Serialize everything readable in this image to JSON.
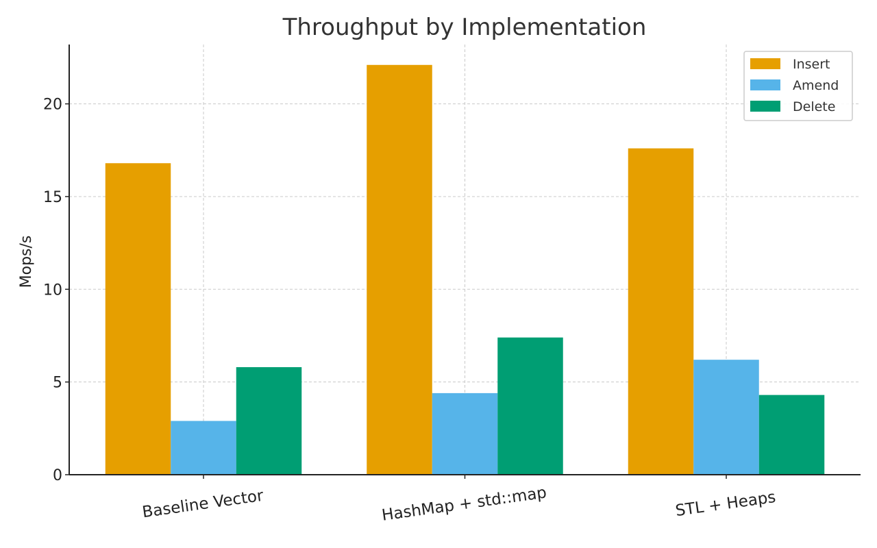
{
  "chart_data": {
    "type": "bar",
    "title": "Throughput by Implementation",
    "xlabel": "",
    "ylabel": "Mops/s",
    "categories": [
      "Baseline Vector",
      "HashMap + std::map",
      "STL + Heaps"
    ],
    "series": [
      {
        "name": "Insert",
        "color": "#E69F00",
        "values": [
          16.8,
          22.1,
          17.6
        ]
      },
      {
        "name": "Amend",
        "color": "#56B4E9",
        "values": [
          2.9,
          4.4,
          6.2
        ]
      },
      {
        "name": "Delete",
        "color": "#009E73",
        "values": [
          5.8,
          7.4,
          4.3
        ]
      }
    ],
    "ylim": [
      0,
      23.2
    ],
    "yticks": [
      0,
      5,
      10,
      15,
      20
    ],
    "grid": true,
    "legend_position": "top-right"
  }
}
